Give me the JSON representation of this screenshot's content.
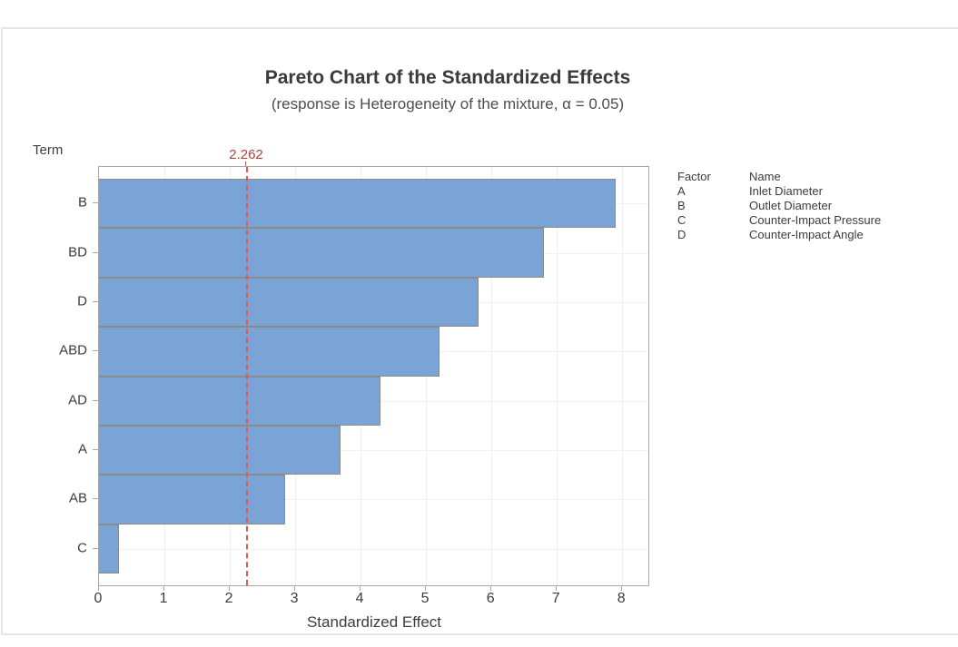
{
  "chart_data": {
    "type": "bar",
    "orientation": "horizontal",
    "title": "Pareto Chart of the Standardized Effects",
    "subtitle": "(response is Heterogeneity of the mixture, α = 0.05)",
    "y_axis_title": "Term",
    "xlabel": "Standardized Effect",
    "categories": [
      "B",
      "BD",
      "D",
      "ABD",
      "AD",
      "A",
      "AB",
      "C"
    ],
    "values": [
      7.9,
      6.8,
      5.8,
      5.2,
      4.3,
      3.7,
      2.85,
      0.3
    ],
    "x_ticks": [
      "0",
      "1",
      "2",
      "3",
      "4",
      "5",
      "6",
      "7",
      "8"
    ],
    "xlim": [
      0,
      8.4
    ],
    "grid": true,
    "legend_position": "right",
    "reference_line": {
      "value": 2.262,
      "label": "2.262",
      "style": "dashed",
      "line_color": "#E4574E",
      "label_color": "#B0413C"
    },
    "bar_color": "#7BA4D6",
    "bar_border_color": "#8A8A8A",
    "legend": {
      "header": {
        "factor": "Factor",
        "name": "Name"
      },
      "rows": [
        {
          "factor": "A",
          "name": "Inlet Diameter"
        },
        {
          "factor": "B",
          "name": "Outlet Diameter"
        },
        {
          "factor": "C",
          "name": "Counter-Impact Pressure"
        },
        {
          "factor": "D",
          "name": "Counter-Impact Angle"
        }
      ]
    }
  }
}
